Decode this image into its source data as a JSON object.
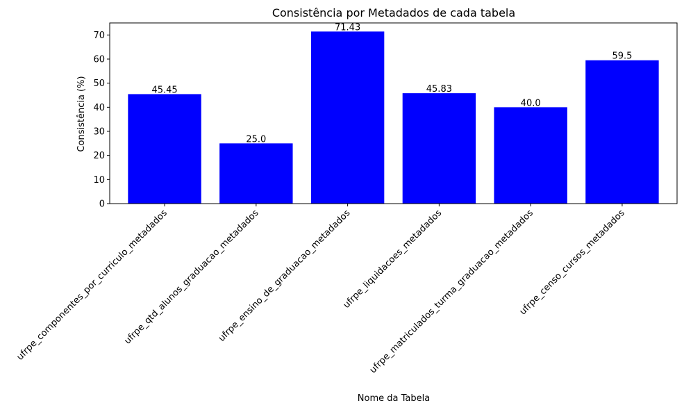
{
  "chart_data": {
    "type": "bar",
    "title": "Consistência por Metadados de cada tabela",
    "xlabel": "Nome da Tabela",
    "ylabel": "Consistência (%)",
    "categories": [
      "ufrpe_componentes_por_curriculo_metadados",
      "ufrpe_qtd_alunos_graduacao_metadados",
      "ufrpe_ensino_de_graduacao_metadados",
      "ufrpe_liquidacoes_metadados",
      "ufrpe_matriculados_turma_graduacao_metadados",
      "ufrpe_censo_cursos_metadados"
    ],
    "values": [
      45.45,
      25.0,
      71.43,
      45.83,
      40.0,
      59.5
    ],
    "data_labels": [
      "45.45",
      "25.0",
      "71.43",
      "45.83",
      "40.0",
      "59.5"
    ],
    "yticks": [
      0,
      10,
      20,
      30,
      40,
      50,
      60,
      70
    ],
    "ylim": [
      0,
      75
    ],
    "bar_color": "#0000ff",
    "grid": false,
    "legend": "none"
  }
}
